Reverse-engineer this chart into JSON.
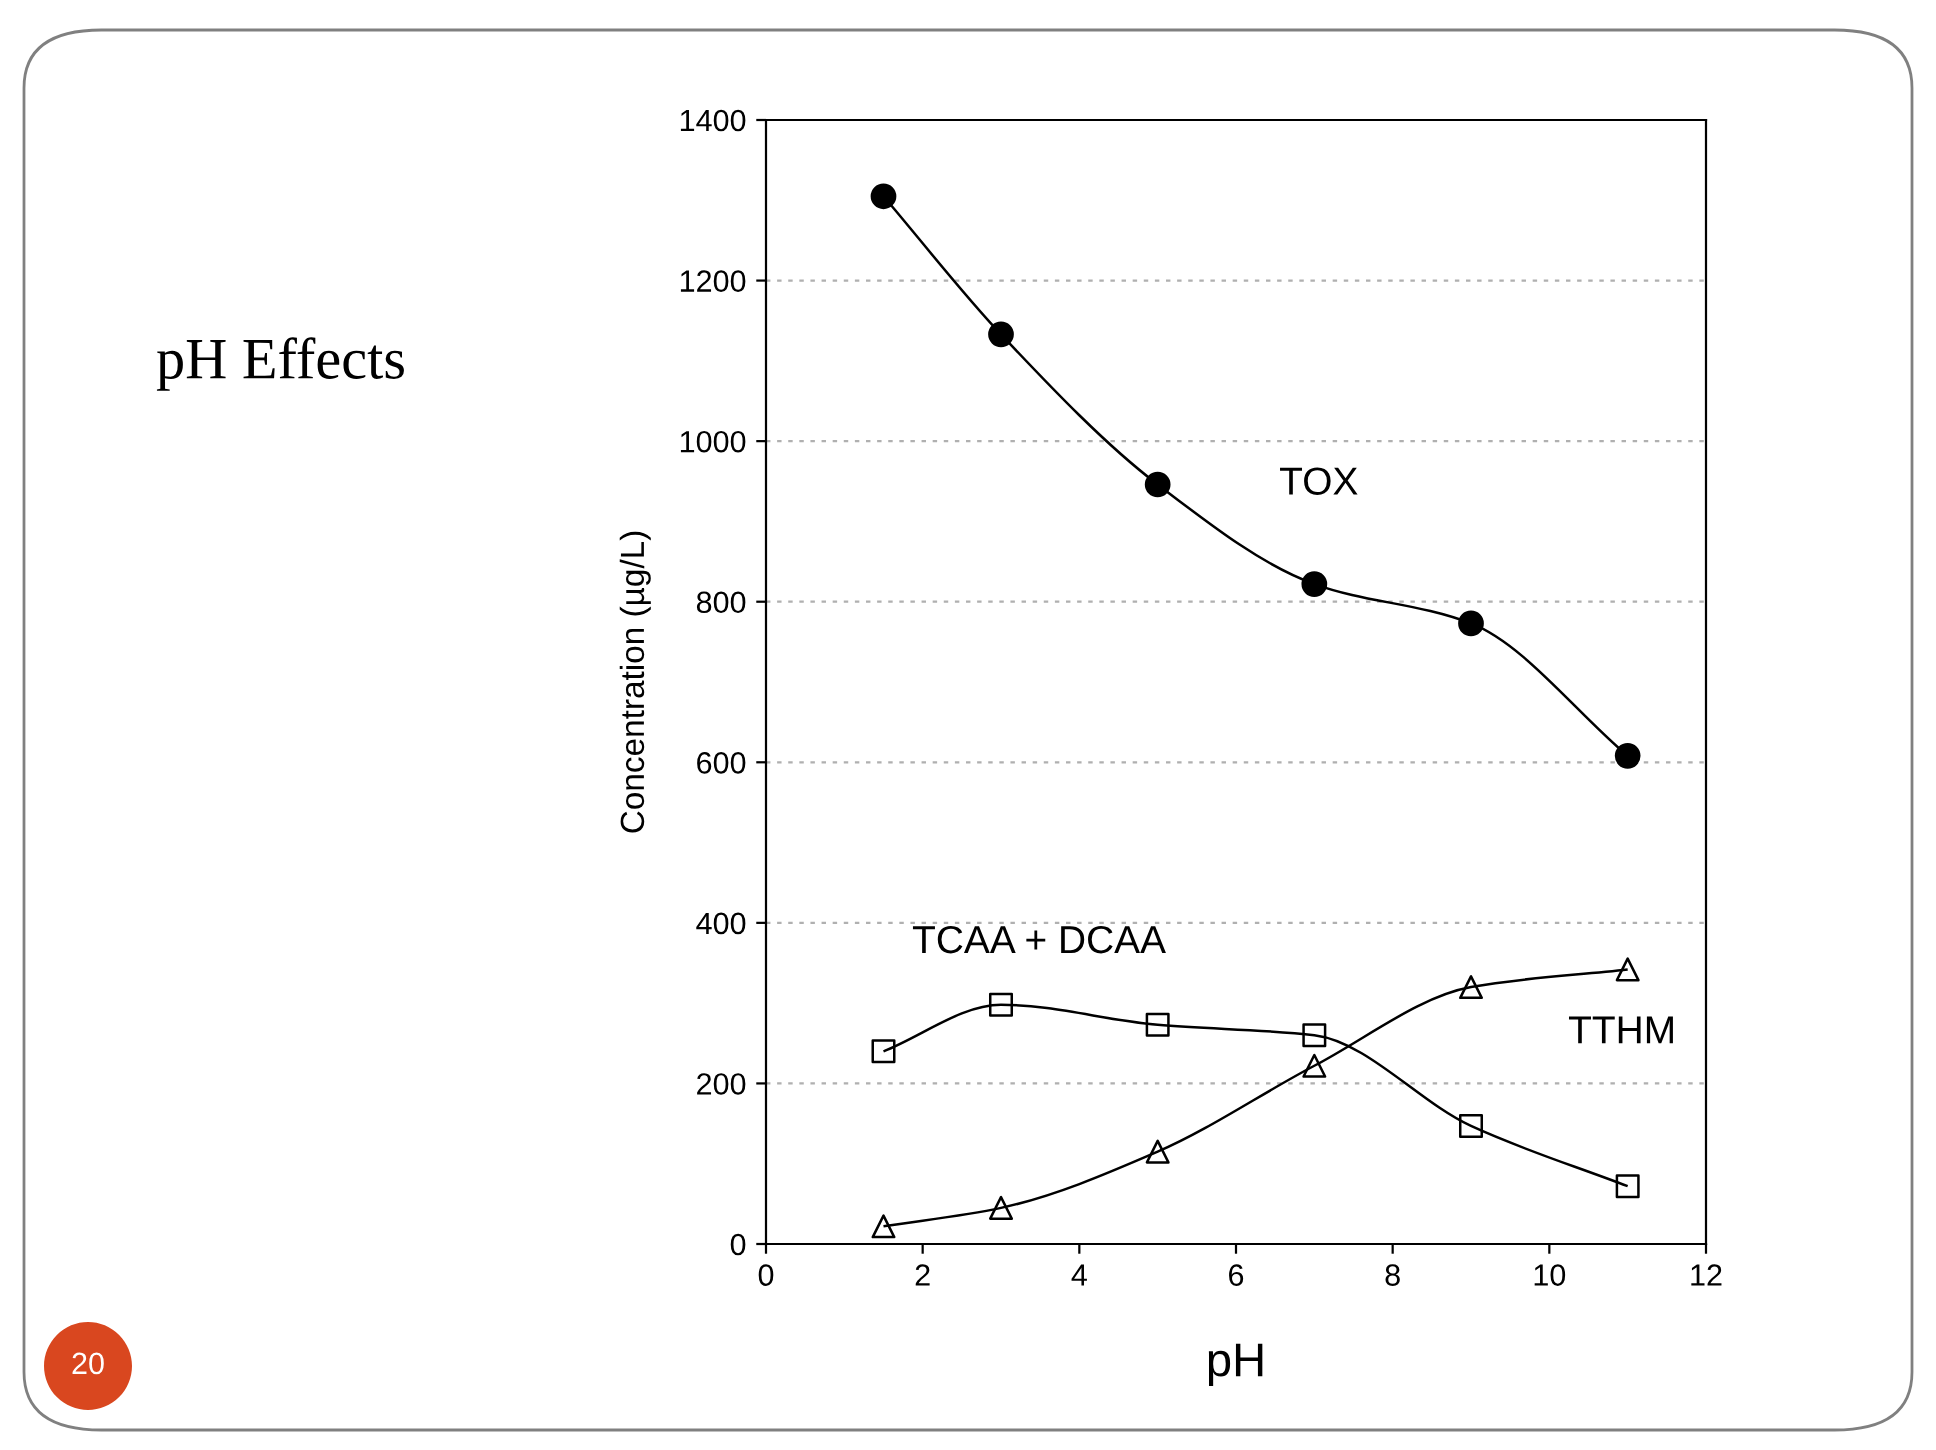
{
  "chart_data": {
    "type": "line",
    "title": "pH Effects",
    "xlabel": "pH",
    "ylabel": "Concentration (µg/L)",
    "annotations": [
      "20"
    ],
    "x": [
      1.5,
      3,
      5,
      7,
      9,
      11
    ],
    "series": [
      {
        "name": "TOX",
        "color": "#000000",
        "marker": "circle",
        "values": [
          1305,
          1133,
          946,
          822,
          773,
          608
        ]
      },
      {
        "name": "TCAA + DCAA",
        "color": "#000000",
        "marker": "square",
        "values": [
          240,
          298,
          273,
          260,
          147,
          72
        ]
      },
      {
        "name": "TTHM",
        "color": "#000000",
        "marker": "triangle",
        "values": [
          22,
          45,
          115,
          222,
          320,
          342
        ]
      }
    ],
    "xlim": [
      0,
      12
    ],
    "xticks": [
      0,
      2,
      4,
      6,
      8,
      10,
      12
    ],
    "ylim": [
      0,
      1400
    ],
    "yticks": [
      0,
      200,
      400,
      600,
      800,
      1000,
      1200,
      1400
    ],
    "grid": "y",
    "line_style": "solid",
    "legend": false
  }
}
